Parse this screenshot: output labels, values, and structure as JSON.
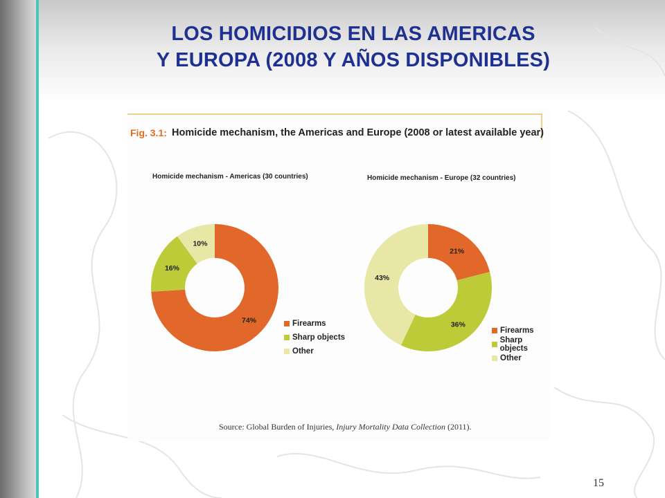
{
  "slide": {
    "title_line1": "LOS HOMICIDIOS EN LAS AMERICAS",
    "title_line2": "Y EUROPA (2008 Y AÑOS DISPONIBLES)",
    "page_number": "15",
    "title_color": "#1f3190"
  },
  "figure": {
    "number": "Fig. 3.1:",
    "title": "Homicide mechanism, the Americas and Europe (2008 or latest available year)",
    "source_prefix": "Source: Global Burden of Injuries, ",
    "source_italic": "Injury Mortality Data Collection",
    "source_suffix": " (2011)."
  },
  "chart_data": [
    {
      "type": "pie",
      "title": "Homicide mechanism - Americas (30 countries)",
      "categories": [
        "Firearms",
        "Sharp objects",
        "Other"
      ],
      "values": [
        74,
        16,
        10
      ],
      "labels": [
        "74%",
        "16%",
        "10%"
      ],
      "colors": [
        "#e1682a",
        "#bccb37",
        "#e8e7a6"
      ],
      "legend_position": "bottom-right"
    },
    {
      "type": "pie",
      "title": "Homicide mechanism - Europe (32 countries)",
      "categories": [
        "Firearms",
        "Sharp objects",
        "Other"
      ],
      "values": [
        21,
        36,
        43
      ],
      "labels": [
        "21%",
        "36%",
        "43%"
      ],
      "colors": [
        "#e1682a",
        "#bccb37",
        "#e8e7a6"
      ],
      "legend_position": "bottom-right"
    }
  ]
}
